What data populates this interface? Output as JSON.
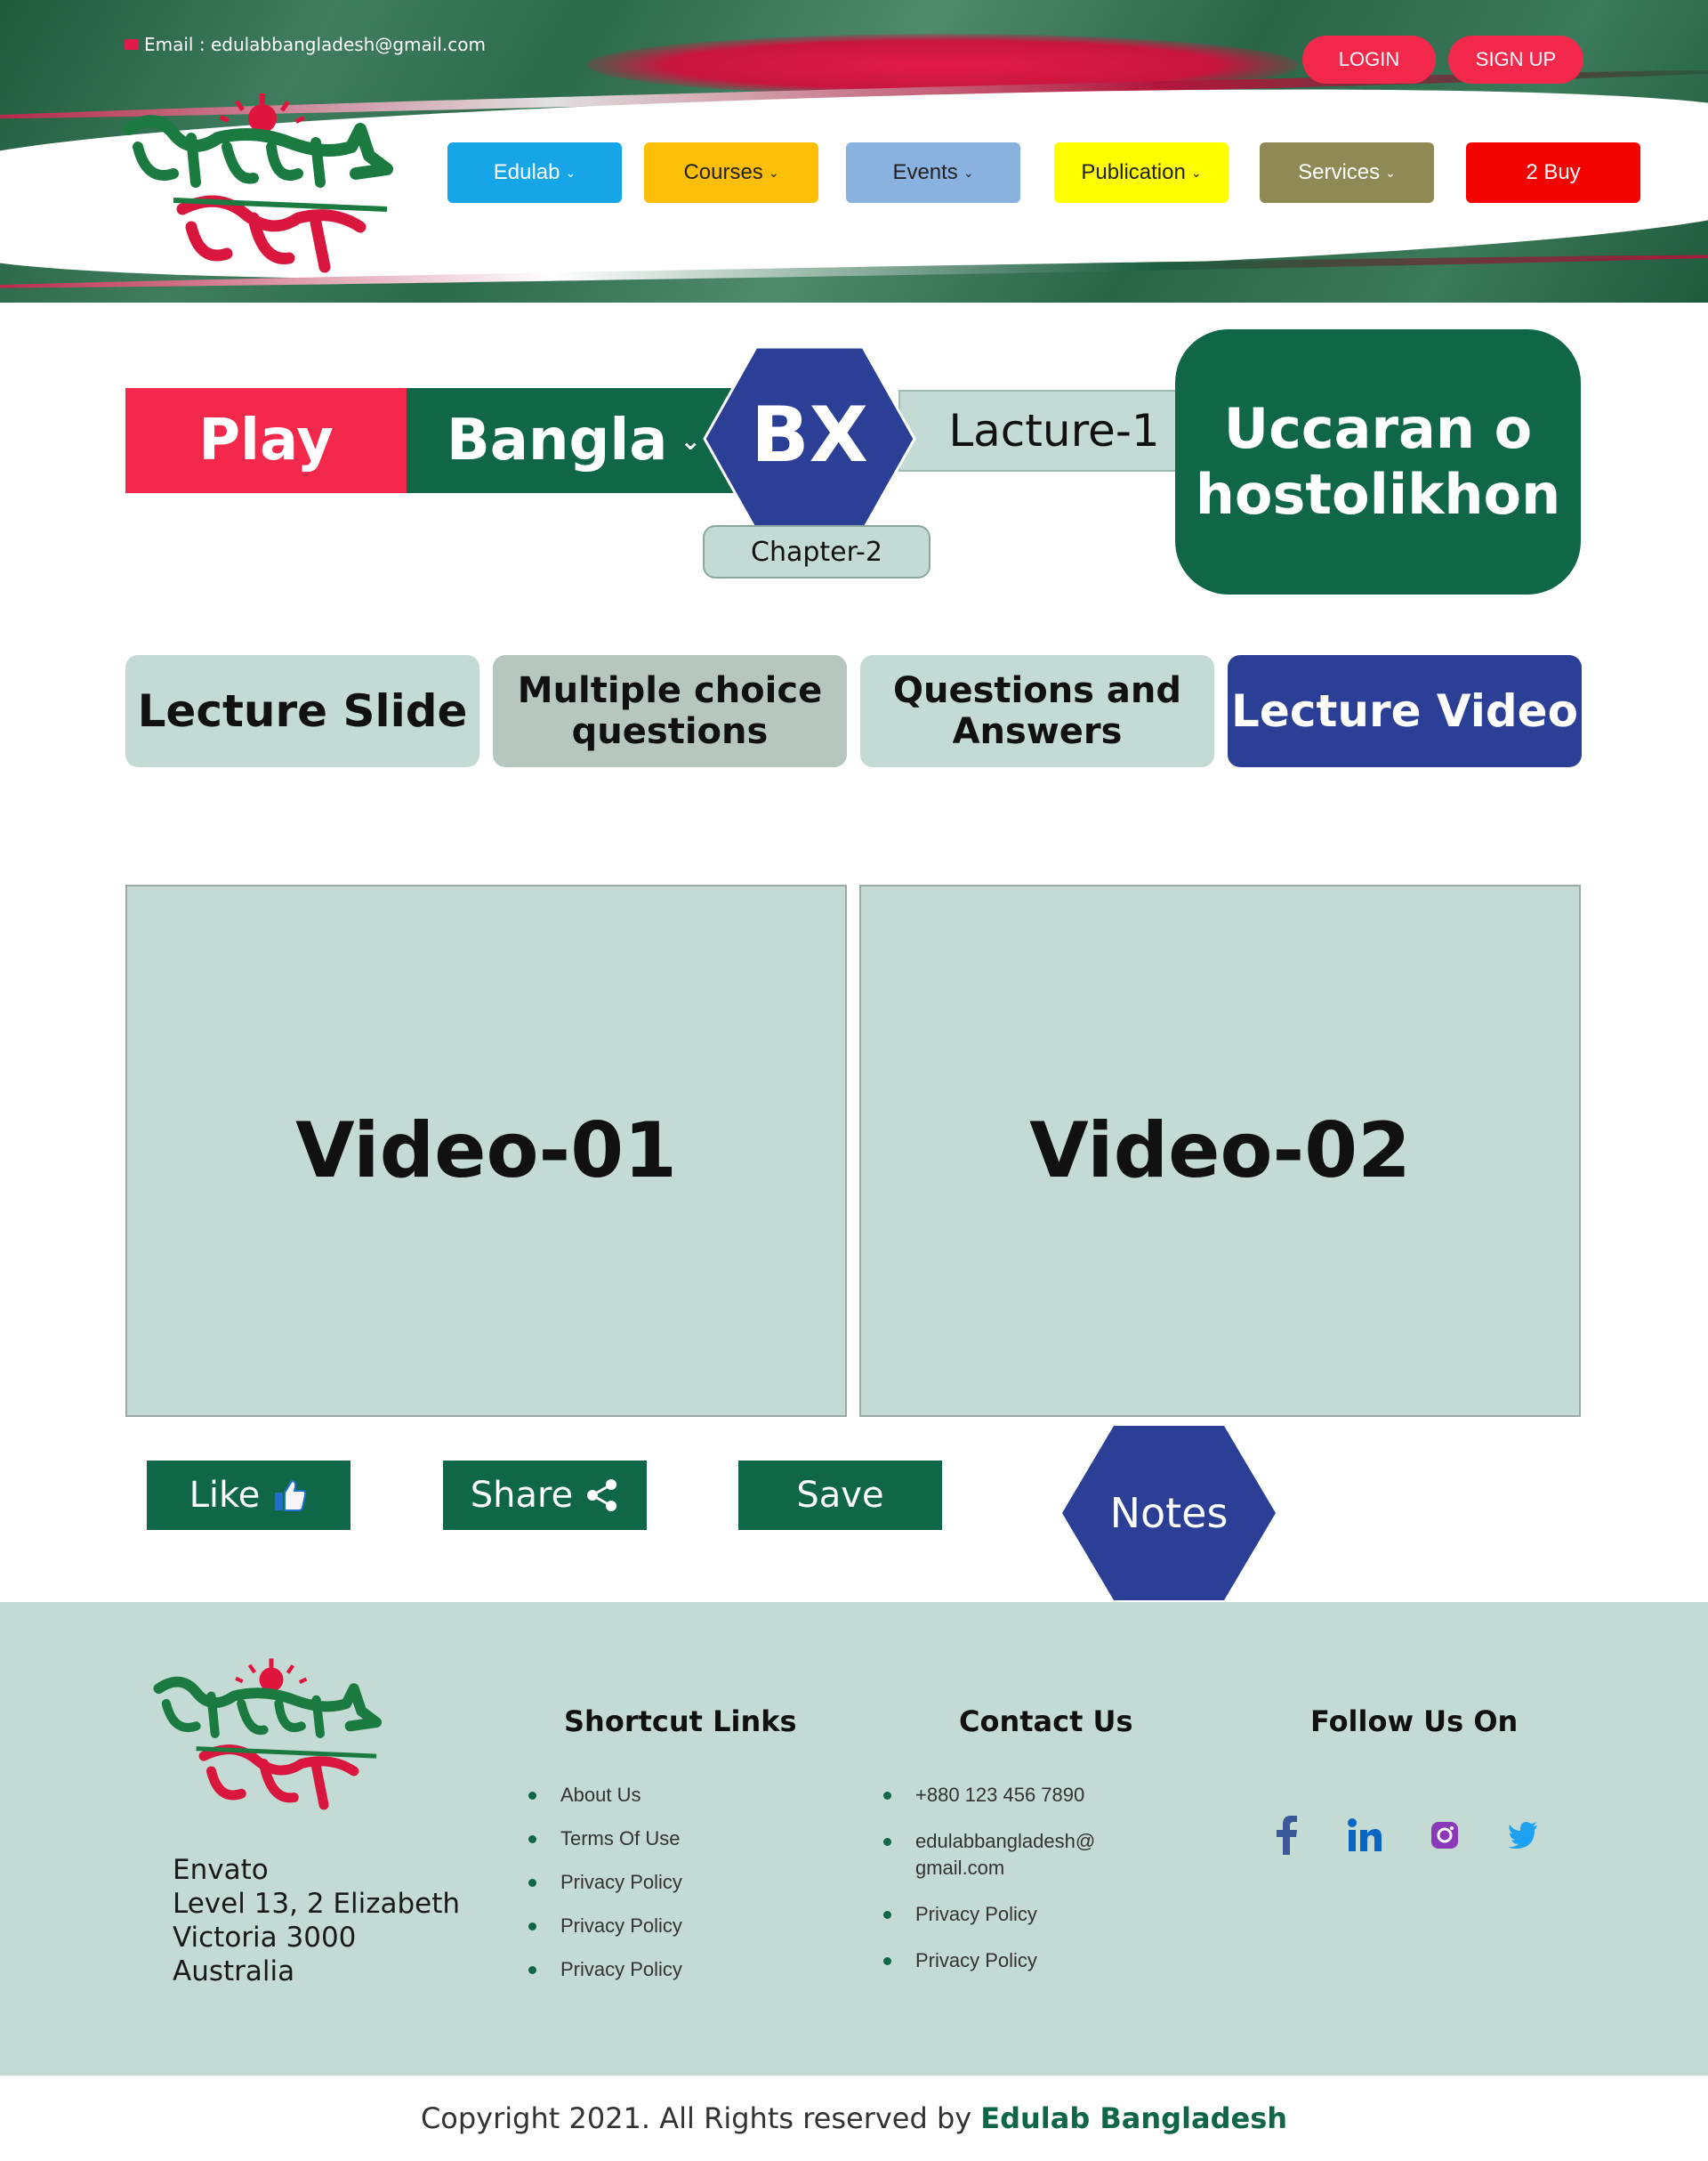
{
  "header": {
    "email_label": "Email : edulabbangladesh@gmail.com",
    "login_label": "LOGIN",
    "signup_label": "SIGN UP"
  },
  "nav": [
    {
      "label": "Edulab",
      "color": "#16a6e8",
      "text_color": "#ffffff",
      "has_chevron": true
    },
    {
      "label": "Courses",
      "color": "#fdbe08",
      "text_color": "#222222",
      "has_chevron": true
    },
    {
      "label": "Events",
      "color": "#8ab2e0",
      "text_color": "#222222",
      "has_chevron": true
    },
    {
      "label": "Publication",
      "color": "#ffff00",
      "text_color": "#222222",
      "has_chevron": true
    },
    {
      "label": "Services",
      "color": "#8f8a55",
      "text_color": "#ffffff",
      "has_chevron": true
    },
    {
      "label": "2 Buy",
      "color": "#f40400",
      "text_color": "#ffffff",
      "has_chevron": false
    }
  ],
  "lesson": {
    "play_label": "Play",
    "language": "Bangla",
    "course_code": "BX",
    "lecture": "Lacture-1",
    "chapter": "Chapter-2",
    "topic": "Uccaran o hostolikhon"
  },
  "tabs": {
    "slide": "Lecture Slide",
    "mcq": "Multiple choice questions",
    "qa": "Questions and Answers",
    "video": "Lecture Video"
  },
  "videos": [
    "Video-01",
    "Video-02"
  ],
  "actions": {
    "like": "Like",
    "share": "Share",
    "save": "Save",
    "notes": "Notes"
  },
  "footer": {
    "address": [
      "Envato",
      "Level 13, 2 Elizabeth",
      "Victoria 3000",
      "Australia"
    ],
    "links_title": "Shortcut Links",
    "links": [
      "About Us",
      "Terms Of Use",
      "Privacy Policy",
      "Privacy Policy",
      "Privacy Policy"
    ],
    "contact_title": "Contact Us",
    "contact": [
      "+880 123 456 7890",
      "edulabbangladesh@ gmail.com",
      "Privacy Policy",
      "Privacy Policy"
    ],
    "follow_title": "Follow Us On",
    "social_icons": [
      "facebook-icon",
      "linkedin-icon",
      "instagram-icon",
      "twitter-icon"
    ],
    "copyright_prefix": "Copyright 2021. All Rights reserved by",
    "copyright_brand": "Edulab Bangladesh"
  },
  "colors": {
    "primary_green": "#0f6748",
    "accent_red": "#f4284a",
    "navy": "#2b3f97",
    "mint": "#c3dbd4"
  }
}
